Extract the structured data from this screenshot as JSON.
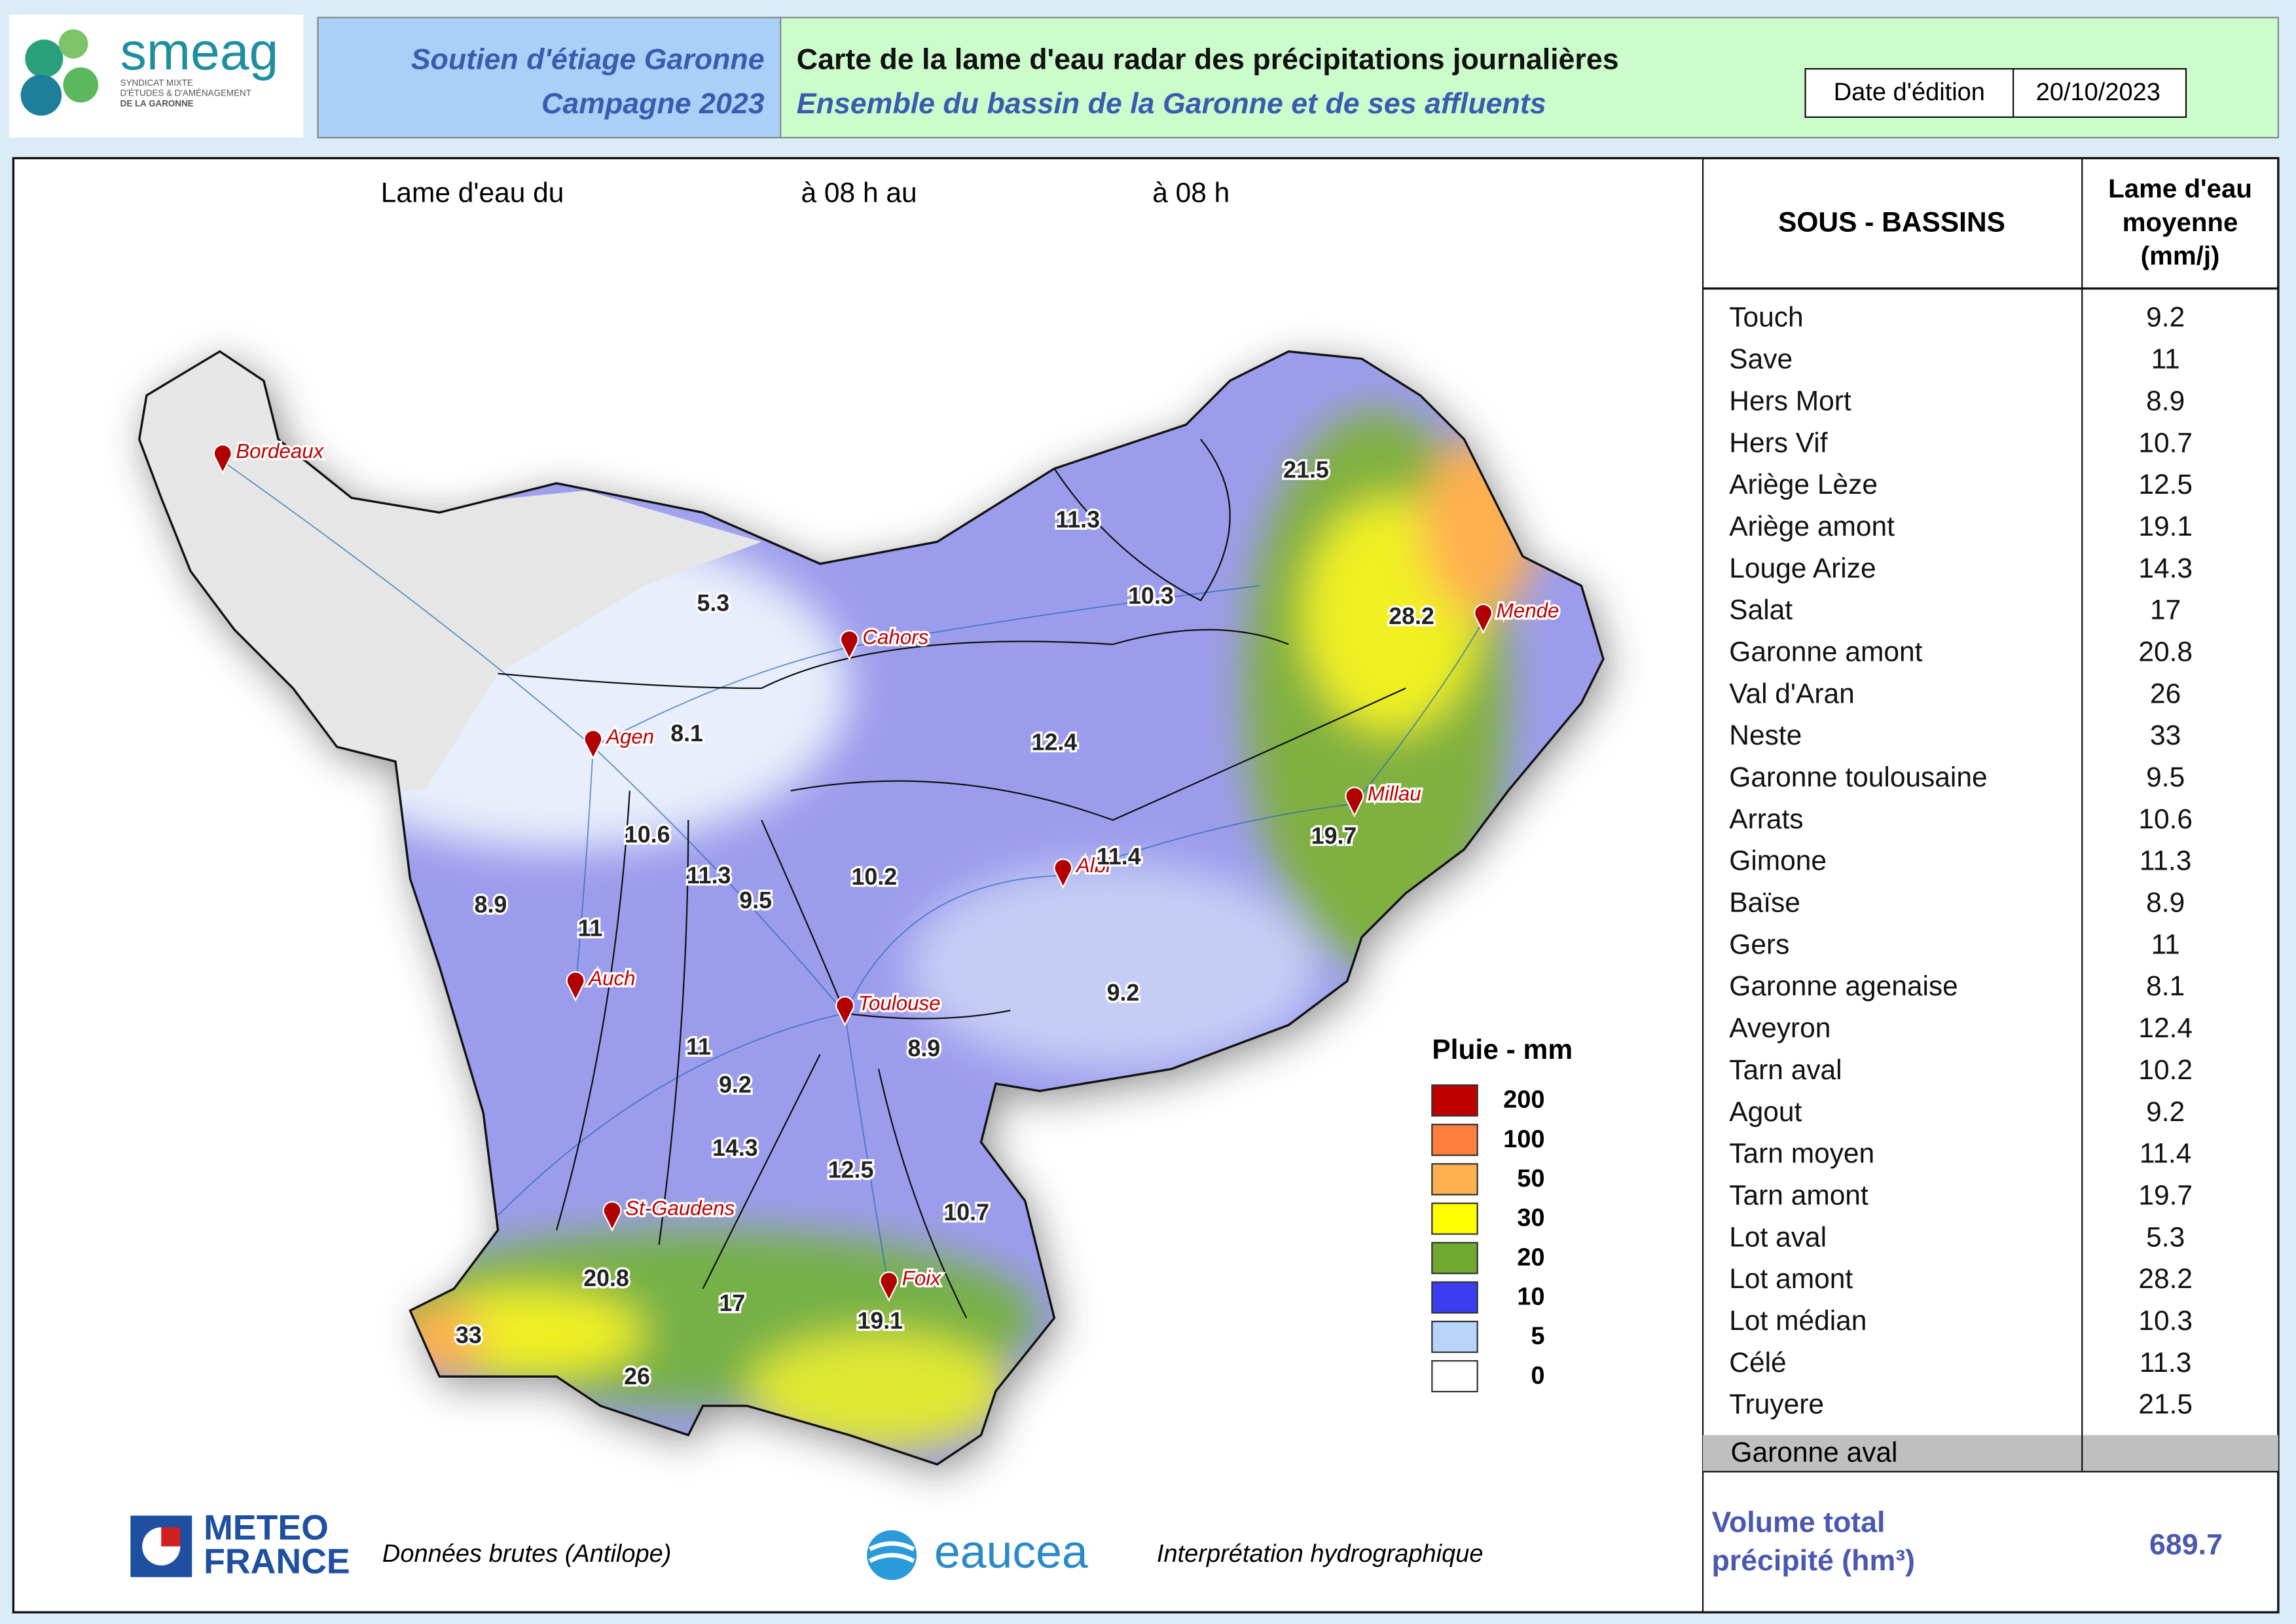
{
  "header": {
    "logo_text": "smeag",
    "logo_subtitle": [
      "SYNDICAT MIXTE",
      "D'ÉTUDES & D'AMÉNAGEMENT",
      "DE LA GARONNE"
    ],
    "program": [
      "Soutien d'étiage Garonne",
      "Campagne 2023"
    ],
    "title": "Carte de la lame d'eau radar des précipitations journalières",
    "subtitle": "Ensemble du bassin de la Garonne et de ses affluents",
    "date_label": "Date d'édition",
    "date": "20/10/2023"
  },
  "map": {
    "period": [
      "Lame d'eau du",
      "à 08 h au",
      "à 08 h"
    ],
    "cities": [
      "Bordeaux",
      "Cahors",
      "Agen",
      "Auch",
      "Toulouse",
      "Albi",
      "Millau",
      "Mende",
      "St-Gaudens",
      "Foix"
    ],
    "basin_values": [
      21.5,
      11.3,
      10.3,
      28.2,
      5.3,
      8.1,
      12.4,
      10.6,
      11.3,
      9.5,
      10.2,
      11.4,
      19.7,
      8.9,
      11,
      9.2,
      8.9,
      11,
      9.2,
      14.3,
      12.5,
      10.7,
      20.8,
      17,
      19.1,
      33,
      26
    ],
    "legend": {
      "title": "Pluie - mm",
      "classes": [
        {
          "value": 200,
          "color": "#c00000"
        },
        {
          "value": 100,
          "color": "#ff7f3f"
        },
        {
          "value": 50,
          "color": "#ffb050"
        },
        {
          "value": 30,
          "color": "#ffff00"
        },
        {
          "value": 20,
          "color": "#70a830"
        },
        {
          "value": 10,
          "color": "#3c3cf0"
        },
        {
          "value": 5,
          "color": "#b8d4f8"
        },
        {
          "value": 0,
          "color": "#ffffff"
        }
      ]
    }
  },
  "table": {
    "headers": [
      "SOUS - BASSINS",
      [
        "Lame d'eau",
        "moyenne",
        "(mm/j)"
      ]
    ],
    "rows": [
      [
        "Touch",
        9.2
      ],
      [
        "Save",
        11
      ],
      [
        "Hers Mort",
        8.9
      ],
      [
        "Hers Vif",
        10.7
      ],
      [
        "Ariège Lèze",
        12.5
      ],
      [
        "Ariège amont",
        19.1
      ],
      [
        "Louge Arize",
        14.3
      ],
      [
        "Salat",
        17
      ],
      [
        "Garonne amont",
        20.8
      ],
      [
        "Val d'Aran",
        26
      ],
      [
        "Neste",
        33
      ],
      [
        "Garonne toulousaine",
        9.5
      ],
      [
        "Arrats",
        10.6
      ],
      [
        "Gimone",
        11.3
      ],
      [
        "Baïse",
        8.9
      ],
      [
        "Gers",
        11
      ],
      [
        "Garonne agenaise",
        8.1
      ],
      [
        "Aveyron",
        12.4
      ],
      [
        "Tarn aval",
        10.2
      ],
      [
        "Agout",
        9.2
      ],
      [
        "Tarn moyen",
        11.4
      ],
      [
        "Tarn amont",
        19.7
      ],
      [
        "Lot aval",
        5.3
      ],
      [
        "Lot amont",
        28.2
      ],
      [
        "Lot médian",
        10.3
      ],
      [
        "Célé",
        11.3
      ],
      [
        "Truyere",
        21.5
      ]
    ],
    "grey_row": "Garonne aval",
    "total_label": [
      "Volume total",
      "précipité (hm³)"
    ],
    "total": 689.7
  },
  "footer": {
    "meteo_logo": [
      "METEO",
      "FRANCE"
    ],
    "meteo_text": "Données brutes (Antilope)",
    "eaucea_logo": "eaucea",
    "eaucea_text": "Interprétation hydrographique"
  }
}
